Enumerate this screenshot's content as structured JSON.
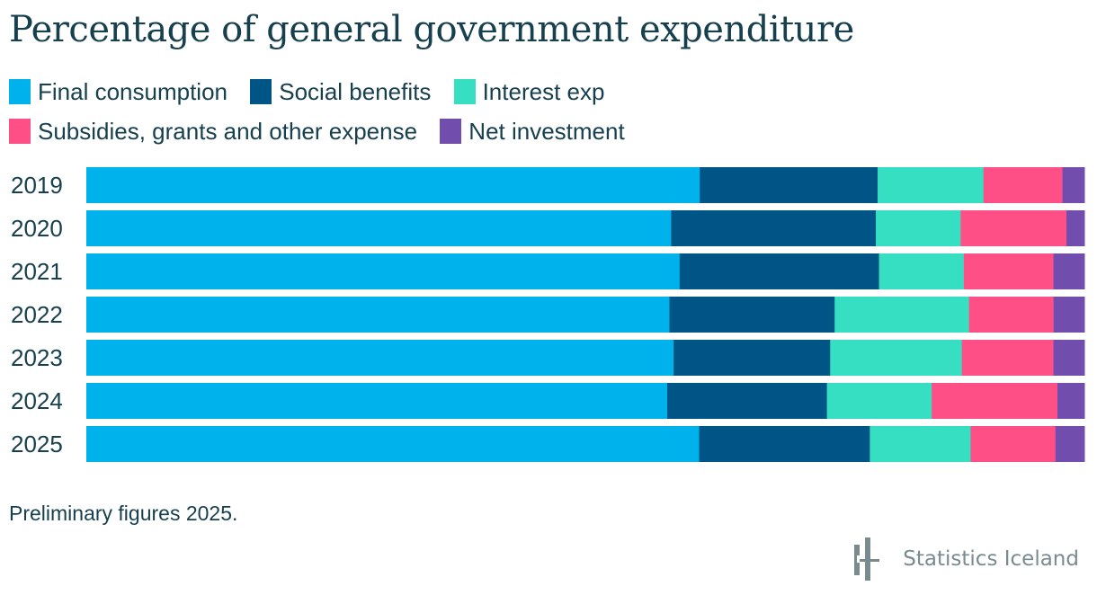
{
  "header": {
    "title": "Percentage of general government expenditure"
  },
  "legend": [
    {
      "label": "Final consumption",
      "color": "#00b2ec"
    },
    {
      "label": "Social benefits",
      "color": "#005587"
    },
    {
      "label": "Interest exp",
      "color": "#36dfc2"
    },
    {
      "label": "Subsidies, grants and other expense",
      "color": "#ff4f87"
    },
    {
      "label": "Net investment",
      "color": "#714dae"
    }
  ],
  "footer": {
    "note": "Preliminary figures 2025.",
    "brand": "Statistics Iceland"
  },
  "chart_data": {
    "type": "bar",
    "orientation": "horizontal",
    "stacked": true,
    "normalized": true,
    "title": "Percentage of general government expenditure",
    "xlabel": "",
    "ylabel": "",
    "xlim": [
      0,
      100
    ],
    "grid": false,
    "legend_position": "top",
    "categories": [
      "2019",
      "2020",
      "2021",
      "2022",
      "2023",
      "2024",
      "2025"
    ],
    "series": [
      {
        "name": "Final consumption",
        "color": "#00b2ec",
        "values": [
          61.4,
          58.6,
          59.5,
          58.6,
          58.9,
          58.2,
          61.4
        ]
      },
      {
        "name": "Social benefits",
        "color": "#005587",
        "values": [
          17.8,
          20.5,
          20.0,
          16.6,
          15.7,
          16.0,
          17.1
        ]
      },
      {
        "name": "Interest exp",
        "color": "#36dfc2",
        "values": [
          10.6,
          8.5,
          8.5,
          13.5,
          13.2,
          10.5,
          10.1
        ]
      },
      {
        "name": "Subsidies, grants and other expense",
        "color": "#ff4f87",
        "values": [
          7.9,
          10.6,
          9.0,
          8.5,
          9.2,
          12.6,
          8.5
        ]
      },
      {
        "name": "Net investment",
        "color": "#714dae",
        "values": [
          2.2,
          1.8,
          3.1,
          3.1,
          3.1,
          2.7,
          2.9
        ]
      }
    ],
    "annotations": [
      "Preliminary figures 2025."
    ]
  }
}
